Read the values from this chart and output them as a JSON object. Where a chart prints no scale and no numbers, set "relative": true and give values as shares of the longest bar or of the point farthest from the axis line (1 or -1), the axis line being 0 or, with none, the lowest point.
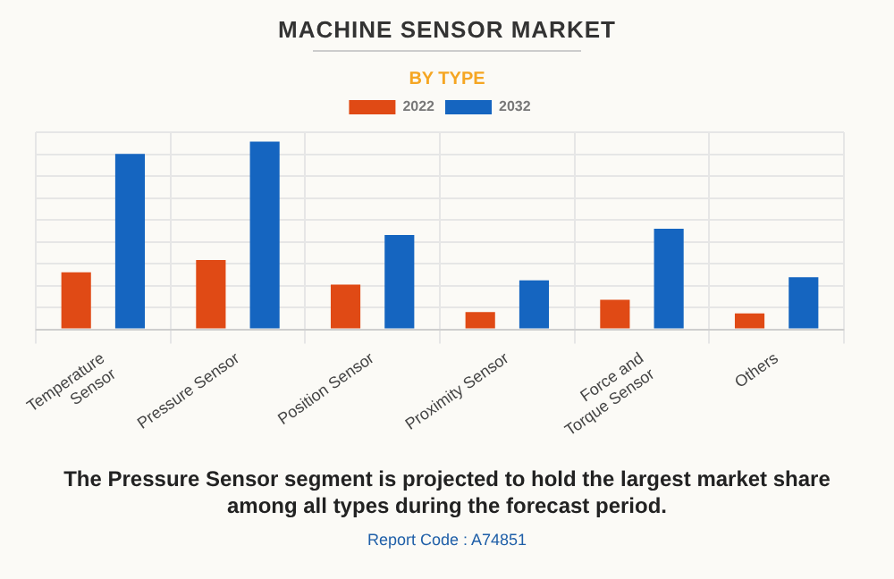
{
  "chart_data": {
    "type": "bar",
    "title": "MACHINE SENSOR MARKET",
    "subtitle": "BY TYPE",
    "categories": [
      "Temperature Sensor",
      "Pressure Sensor",
      "Position Sensor",
      "Proximity Sensor",
      "Force and Torque Sensor",
      "Others"
    ],
    "series": [
      {
        "name": "2022",
        "color": "#e04a15",
        "values": [
          0.304,
          0.369,
          0.239,
          0.092,
          0.157,
          0.085
        ]
      },
      {
        "name": "2032",
        "color": "#1565c0",
        "values": [
          0.935,
          1.0,
          0.503,
          0.261,
          0.536,
          0.278
        ]
      }
    ],
    "relative": true,
    "grid": true,
    "legend": "top",
    "annotations": [
      "The Pressure Sensor segment is projected to hold the largest market share among all types during the forecast period.",
      "Report Code : A74851"
    ]
  }
}
